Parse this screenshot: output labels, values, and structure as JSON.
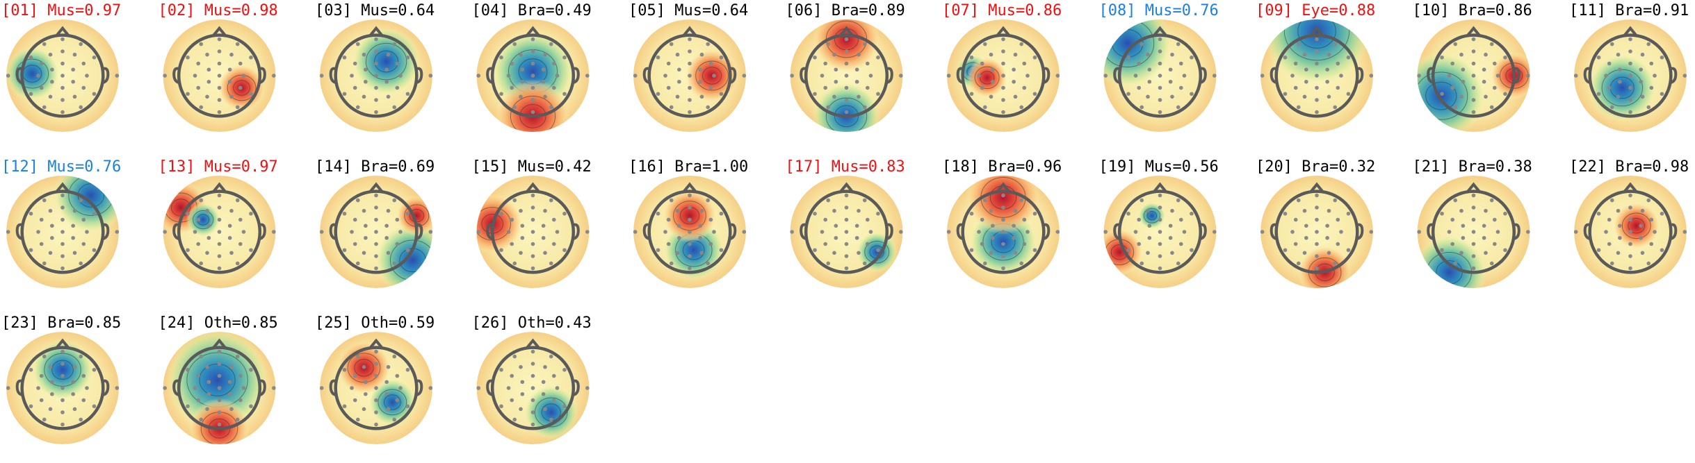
{
  "components": [
    {
      "title": "[01] Mus=0.97",
      "color": "#f01010"
    },
    {
      "title": "[02] Mus=0.98",
      "color": "#f01010"
    },
    {
      "title": "[03] Mus=0.64",
      "color": "#000000"
    },
    {
      "title": "[04] Bra=0.49",
      "color": "#000000"
    },
    {
      "title": "[05] Mus=0.64",
      "color": "#000000"
    },
    {
      "title": "[06] Bra=0.89",
      "color": "#000000"
    },
    {
      "title": "[07] Mus=0.86",
      "color": "#f01010"
    },
    {
      "title": "[08] Mus=0.76",
      "color": "#1a80e6"
    },
    {
      "title": "[09] Eye=0.88",
      "color": "#f01010"
    },
    {
      "title": "[10] Bra=0.86",
      "color": "#000000"
    },
    {
      "title": "[11] Bra=0.91",
      "color": "#000000"
    },
    {
      "title": "[12] Mus=0.76",
      "color": "#1a80e6"
    },
    {
      "title": "[13] Mus=0.97",
      "color": "#f01010"
    },
    {
      "title": "[14] Bra=0.69",
      "color": "#000000"
    },
    {
      "title": "[15] Mus=0.42",
      "color": "#000000"
    },
    {
      "title": "[16] Bra=1.00",
      "color": "#000000"
    },
    {
      "title": "[17] Mus=0.83",
      "color": "#f01010"
    },
    {
      "title": "[18] Bra=0.96",
      "color": "#000000"
    },
    {
      "title": "[19] Mus=0.56",
      "color": "#000000"
    },
    {
      "title": "[20] Bra=0.32",
      "color": "#000000"
    },
    {
      "title": "[21] Bra=0.38",
      "color": "#000000"
    },
    {
      "title": "[22] Bra=0.98",
      "color": "#000000"
    },
    {
      "title": "[23] Bra=0.85",
      "color": "#000000"
    },
    {
      "title": "[24] Oth=0.85",
      "color": "#000000"
    },
    {
      "title": "[25] Oth=0.59",
      "color": "#000000"
    },
    {
      "title": "[26] Oth=0.43",
      "color": "#000000"
    }
  ]
}
